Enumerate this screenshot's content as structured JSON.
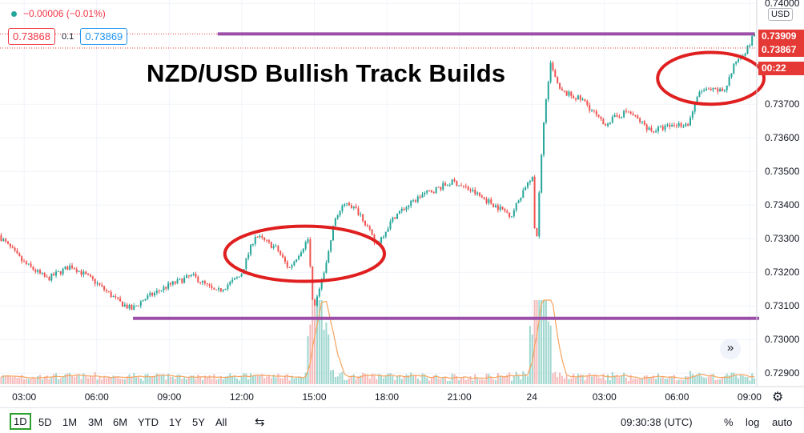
{
  "header": {
    "change": "−0.00006 (−0.01%)",
    "sell_price": "0.73868",
    "spread": "0.1",
    "buy_price": "0.73869",
    "currency": "USD"
  },
  "headline": "NZD/USD Bullish Track Builds",
  "price_tags": [
    {
      "value": "0.73909",
      "color": "#e53935"
    },
    {
      "value": "0.73867",
      "color": "#e53935"
    },
    {
      "value": "00:22",
      "color": "#e53935"
    }
  ],
  "toolbar": {
    "ranges": [
      "1D",
      "5D",
      "1M",
      "3M",
      "6M",
      "YTD",
      "1Y",
      "5Y",
      "All"
    ],
    "active_range": "1D",
    "clock": "09:30:38 (UTC)",
    "percent": "%",
    "log": "log",
    "auto": "auto"
  },
  "colors": {
    "up": "#26a69a",
    "down": "#ef5350",
    "volume_up": "#7fc9bf",
    "volume_down": "#f2a3a3",
    "volume_ma": "#f7a35c",
    "annotation_line": "#9c4fa8",
    "annotation_circle": "#e02020"
  },
  "chart_data": {
    "type": "candlestick",
    "title": "NZD/USD Bullish Track Builds",
    "y_ticks": [
      "0.74000",
      "0.73700",
      "0.73600",
      "0.73500",
      "0.73400",
      "0.73300",
      "0.73200",
      "0.73100",
      "0.73000",
      "0.72900"
    ],
    "y_tick_values": [
      0.74,
      0.737,
      0.736,
      0.735,
      0.734,
      0.733,
      0.732,
      0.731,
      0.73,
      0.729
    ],
    "ylim": [
      0.7286,
      0.7401
    ],
    "x_ticks": [
      "03:00",
      "06:00",
      "09:00",
      "12:00",
      "15:00",
      "18:00",
      "21:00",
      "24",
      "03:00",
      "06:00",
      "09:00"
    ],
    "x_tick_hours": [
      3,
      6,
      9,
      12,
      15,
      18,
      21,
      24,
      27,
      30,
      33
    ],
    "x_range_hours": [
      2.0,
      33.3
    ],
    "price_path": [
      [
        2.0,
        0.7331
      ],
      [
        3.0,
        0.7323
      ],
      [
        4.0,
        0.7318
      ],
      [
        5.0,
        0.7322
      ],
      [
        6.0,
        0.7317
      ],
      [
        7.0,
        0.7311
      ],
      [
        7.5,
        0.7309
      ],
      [
        8.0,
        0.7312
      ],
      [
        9.0,
        0.7316
      ],
      [
        10.0,
        0.7319
      ],
      [
        11.0,
        0.7314
      ],
      [
        12.0,
        0.7319
      ],
      [
        12.6,
        0.7331
      ],
      [
        13.5,
        0.7327
      ],
      [
        14.0,
        0.7321
      ],
      [
        14.8,
        0.733
      ],
      [
        15.0,
        0.7308
      ],
      [
        15.5,
        0.7321
      ],
      [
        15.9,
        0.7336
      ],
      [
        16.4,
        0.7341
      ],
      [
        17.0,
        0.7337
      ],
      [
        17.6,
        0.7328
      ],
      [
        18.4,
        0.7337
      ],
      [
        19.5,
        0.7343
      ],
      [
        20.8,
        0.7347
      ],
      [
        21.6,
        0.7344
      ],
      [
        22.5,
        0.734
      ],
      [
        23.2,
        0.7337
      ],
      [
        23.8,
        0.7346
      ],
      [
        24.1,
        0.7348
      ],
      [
        24.2,
        0.7324
      ],
      [
        24.5,
        0.7363
      ],
      [
        24.8,
        0.7382
      ],
      [
        25.2,
        0.7374
      ],
      [
        26.2,
        0.7371
      ],
      [
        27.0,
        0.7364
      ],
      [
        28.0,
        0.7368
      ],
      [
        29.0,
        0.7362
      ],
      [
        30.0,
        0.7364
      ],
      [
        30.5,
        0.7364
      ],
      [
        31.0,
        0.7374
      ],
      [
        32.0,
        0.7374
      ],
      [
        32.5,
        0.7383
      ],
      [
        33.0,
        0.7387
      ],
      [
        33.3,
        0.7392
      ]
    ],
    "price_lines": [
      {
        "price": 0.73909,
        "color": "#e53935",
        "style": "dotted"
      },
      {
        "price": 0.73867,
        "color": "#e53935",
        "style": "dotted"
      }
    ],
    "annotations": {
      "resistance_line": {
        "price": 0.73909,
        "from_hour": 11.0,
        "to_hour": 33.2
      },
      "support_line": {
        "price": 0.73063,
        "from_hour": 7.5,
        "to_hour": 33.4
      },
      "circles": [
        {
          "center_hour": 14.6,
          "center_price": 0.73255,
          "rx_hours": 3.3,
          "ry_price": 0.00082
        },
        {
          "center_hour": 31.4,
          "center_price": 0.73777,
          "rx_hours": 2.2,
          "ry_price": 0.00077
        }
      ]
    },
    "volume_spikes_hours": [
      15.0,
      15.2,
      24.2,
      24.4
    ]
  }
}
